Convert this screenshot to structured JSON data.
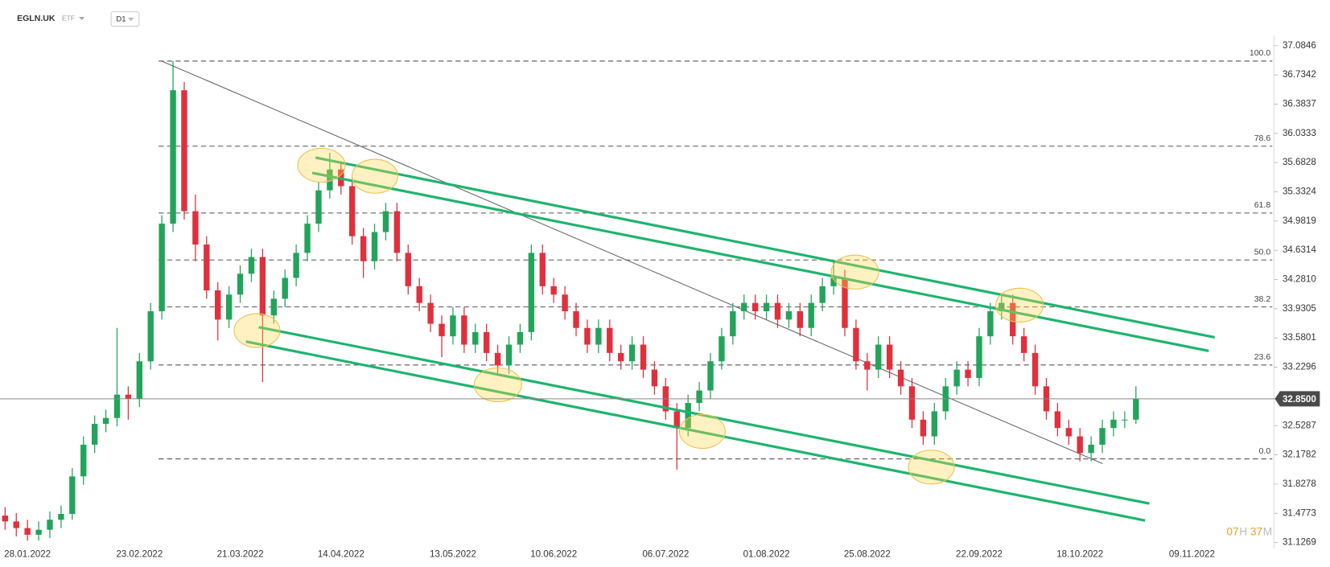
{
  "header": {
    "symbol": "EGLN.UK",
    "asset_class": "ETF",
    "interval": "D1"
  },
  "countdown": {
    "hours": "07",
    "hours_unit": "H",
    "minutes": "37",
    "minutes_unit": "M"
  },
  "chart_data": {
    "type": "candlestick",
    "categories": [
      null,
      null,
      "28.01.2022",
      null,
      null,
      null,
      null,
      null,
      null,
      null,
      null,
      null,
      "23.02.2022",
      null,
      null,
      null,
      null,
      null,
      null,
      null,
      null,
      "21.03.2022",
      null,
      null,
      null,
      null,
      null,
      null,
      null,
      null,
      "14.04.2022",
      null,
      null,
      null,
      null,
      null,
      null,
      null,
      null,
      null,
      "13.05.2022",
      null,
      null,
      null,
      null,
      null,
      null,
      null,
      null,
      "10.06.2022",
      null,
      null,
      null,
      null,
      null,
      null,
      null,
      null,
      null,
      "06.07.2022",
      null,
      null,
      null,
      null,
      null,
      null,
      null,
      null,
      "01.08.2022",
      null,
      null,
      null,
      null,
      null,
      null,
      null,
      null,
      "25.08.2022",
      null,
      null,
      null,
      null,
      null,
      null,
      null,
      null,
      null,
      "22.09.2022",
      null,
      null,
      null,
      null,
      null,
      null,
      null,
      null,
      "18.10.2022",
      null,
      null,
      null,
      null,
      null,
      null,
      null,
      null,
      null,
      "09.11.2022"
    ],
    "open": [
      31.45,
      31.38,
      31.3,
      31.22,
      31.28,
      31.4,
      31.47,
      31.92,
      32.3,
      32.55,
      32.62,
      32.9,
      32.85,
      33.3,
      33.9,
      34.95,
      36.55,
      35.1,
      34.7,
      34.15,
      33.8,
      34.1,
      34.35,
      34.55,
      33.85,
      34.05,
      34.3,
      34.6,
      34.95,
      35.35,
      35.6,
      35.4,
      34.8,
      34.5,
      34.85,
      35.1,
      34.6,
      34.2,
      34.0,
      33.75,
      33.6,
      33.85,
      33.5,
      33.65,
      33.4,
      33.25,
      33.5,
      33.65,
      34.6,
      34.2,
      34.1,
      33.9,
      33.7,
      33.5,
      33.7,
      33.4,
      33.3,
      33.5,
      33.2,
      33.0,
      32.7,
      32.5,
      32.8,
      32.95,
      33.3,
      33.6,
      33.9,
      34.0,
      33.9,
      34.0,
      33.8,
      33.9,
      33.7,
      34.0,
      34.2,
      34.3,
      33.7,
      33.3,
      33.2,
      33.5,
      33.2,
      33.0,
      32.6,
      32.4,
      32.7,
      33.0,
      33.2,
      33.1,
      33.6,
      33.9,
      34.0,
      33.6,
      33.4,
      33.0,
      32.7,
      32.5,
      32.4,
      32.2,
      32.3,
      32.5,
      32.6,
      32.6,
      null,
      null,
      null,
      null,
      null
    ],
    "high": [
      31.55,
      31.48,
      31.4,
      31.38,
      31.5,
      31.57,
      32.02,
      32.4,
      32.65,
      32.72,
      33.7,
      33.0,
      33.4,
      34.0,
      35.05,
      36.9,
      36.65,
      35.3,
      34.8,
      34.25,
      34.2,
      34.45,
      34.65,
      34.65,
      34.15,
      34.4,
      34.7,
      35.05,
      35.45,
      35.8,
      35.7,
      35.5,
      34.9,
      34.95,
      35.2,
      35.2,
      34.7,
      34.3,
      34.1,
      33.85,
      33.95,
      33.95,
      33.75,
      33.75,
      33.5,
      33.6,
      33.75,
      34.7,
      34.7,
      34.3,
      34.2,
      34.0,
      33.8,
      33.8,
      33.8,
      33.5,
      33.6,
      33.6,
      33.3,
      33.1,
      32.8,
      32.9,
      33.05,
      33.4,
      33.7,
      34.0,
      34.1,
      34.1,
      34.1,
      34.1,
      34.0,
      34.0,
      34.1,
      34.3,
      34.5,
      34.4,
      33.8,
      33.4,
      33.6,
      33.6,
      33.3,
      33.1,
      32.7,
      32.8,
      33.1,
      33.3,
      33.3,
      33.7,
      34.0,
      34.1,
      34.1,
      33.7,
      33.5,
      33.1,
      32.8,
      32.6,
      32.5,
      32.4,
      32.6,
      32.7,
      32.7,
      33.0,
      null,
      null,
      null,
      null,
      null
    ],
    "low": [
      31.28,
      31.2,
      31.15,
      31.15,
      31.18,
      31.3,
      31.4,
      31.82,
      32.2,
      32.45,
      32.52,
      32.6,
      32.75,
      33.2,
      33.8,
      34.85,
      35.0,
      34.5,
      34.05,
      33.55,
      33.7,
      34.0,
      34.25,
      33.05,
      33.75,
      33.95,
      34.2,
      34.5,
      34.85,
      35.25,
      35.3,
      34.7,
      34.3,
      34.4,
      34.75,
      34.5,
      34.1,
      33.9,
      33.65,
      33.35,
      33.5,
      33.4,
      33.4,
      33.3,
      33.15,
      33.15,
      33.4,
      33.55,
      34.1,
      34.0,
      33.8,
      33.6,
      33.4,
      33.4,
      33.3,
      33.2,
      33.2,
      33.1,
      32.9,
      32.6,
      32.0,
      32.4,
      32.7,
      32.85,
      33.2,
      33.5,
      33.8,
      33.8,
      33.8,
      33.7,
      33.7,
      33.6,
      33.6,
      33.9,
      34.1,
      33.6,
      33.2,
      32.95,
      33.1,
      33.1,
      32.9,
      32.5,
      32.3,
      32.3,
      32.6,
      32.9,
      33.0,
      33.0,
      33.5,
      33.8,
      33.5,
      33.3,
      32.9,
      32.6,
      32.4,
      32.3,
      32.1,
      32.1,
      32.2,
      32.4,
      32.5,
      32.55,
      null,
      null,
      null,
      null,
      null
    ],
    "close": [
      31.38,
      31.3,
      31.22,
      31.28,
      31.4,
      31.47,
      31.92,
      32.3,
      32.55,
      32.62,
      32.9,
      32.85,
      33.3,
      33.9,
      34.95,
      36.55,
      35.1,
      34.7,
      34.15,
      33.8,
      34.1,
      34.35,
      34.55,
      33.85,
      34.05,
      34.3,
      34.6,
      34.95,
      35.35,
      35.6,
      35.4,
      34.8,
      34.5,
      34.85,
      35.1,
      34.6,
      34.2,
      34.0,
      33.75,
      33.6,
      33.85,
      33.5,
      33.65,
      33.4,
      33.25,
      33.5,
      33.65,
      34.6,
      34.2,
      34.1,
      33.9,
      33.7,
      33.5,
      33.7,
      33.4,
      33.3,
      33.5,
      33.2,
      33.0,
      32.7,
      32.5,
      32.8,
      32.95,
      33.3,
      33.6,
      33.9,
      34.0,
      33.9,
      34.0,
      33.8,
      33.9,
      33.7,
      34.0,
      34.2,
      34.3,
      33.7,
      33.3,
      33.2,
      33.5,
      33.2,
      33.0,
      32.6,
      32.4,
      32.7,
      33.0,
      33.2,
      33.1,
      33.6,
      33.9,
      34.0,
      33.6,
      33.4,
      33.0,
      32.7,
      32.5,
      32.4,
      32.2,
      32.3,
      32.5,
      32.6,
      32.6,
      32.85,
      null,
      null,
      null,
      null,
      null
    ],
    "colors": {
      "up": "#22a45a",
      "down": "#e0303c"
    },
    "ylim": [
      31.1269,
      37.0846
    ],
    "yticks": [
      37.0846,
      36.7342,
      36.3837,
      36.0333,
      35.6828,
      35.3324,
      34.9819,
      34.6314,
      {
        "value": 34.281,
        "label": "34.2810"
      },
      33.9305,
      33.5801,
      33.2296,
      32.5287,
      32.1782,
      31.8278,
      31.4773,
      31.1269
    ],
    "last_price": {
      "value": 32.85,
      "label": "32.8500"
    },
    "fibonacci": {
      "high": 36.9,
      "low": 32.13,
      "levels": [
        {
          "value": 100,
          "label": "100.0"
        },
        78.6,
        61.8,
        {
          "value": 50,
          "label": "50.0"
        },
        38.2,
        23.6,
        {
          "value": 0,
          "label": "0.0"
        }
      ]
    }
  }
}
